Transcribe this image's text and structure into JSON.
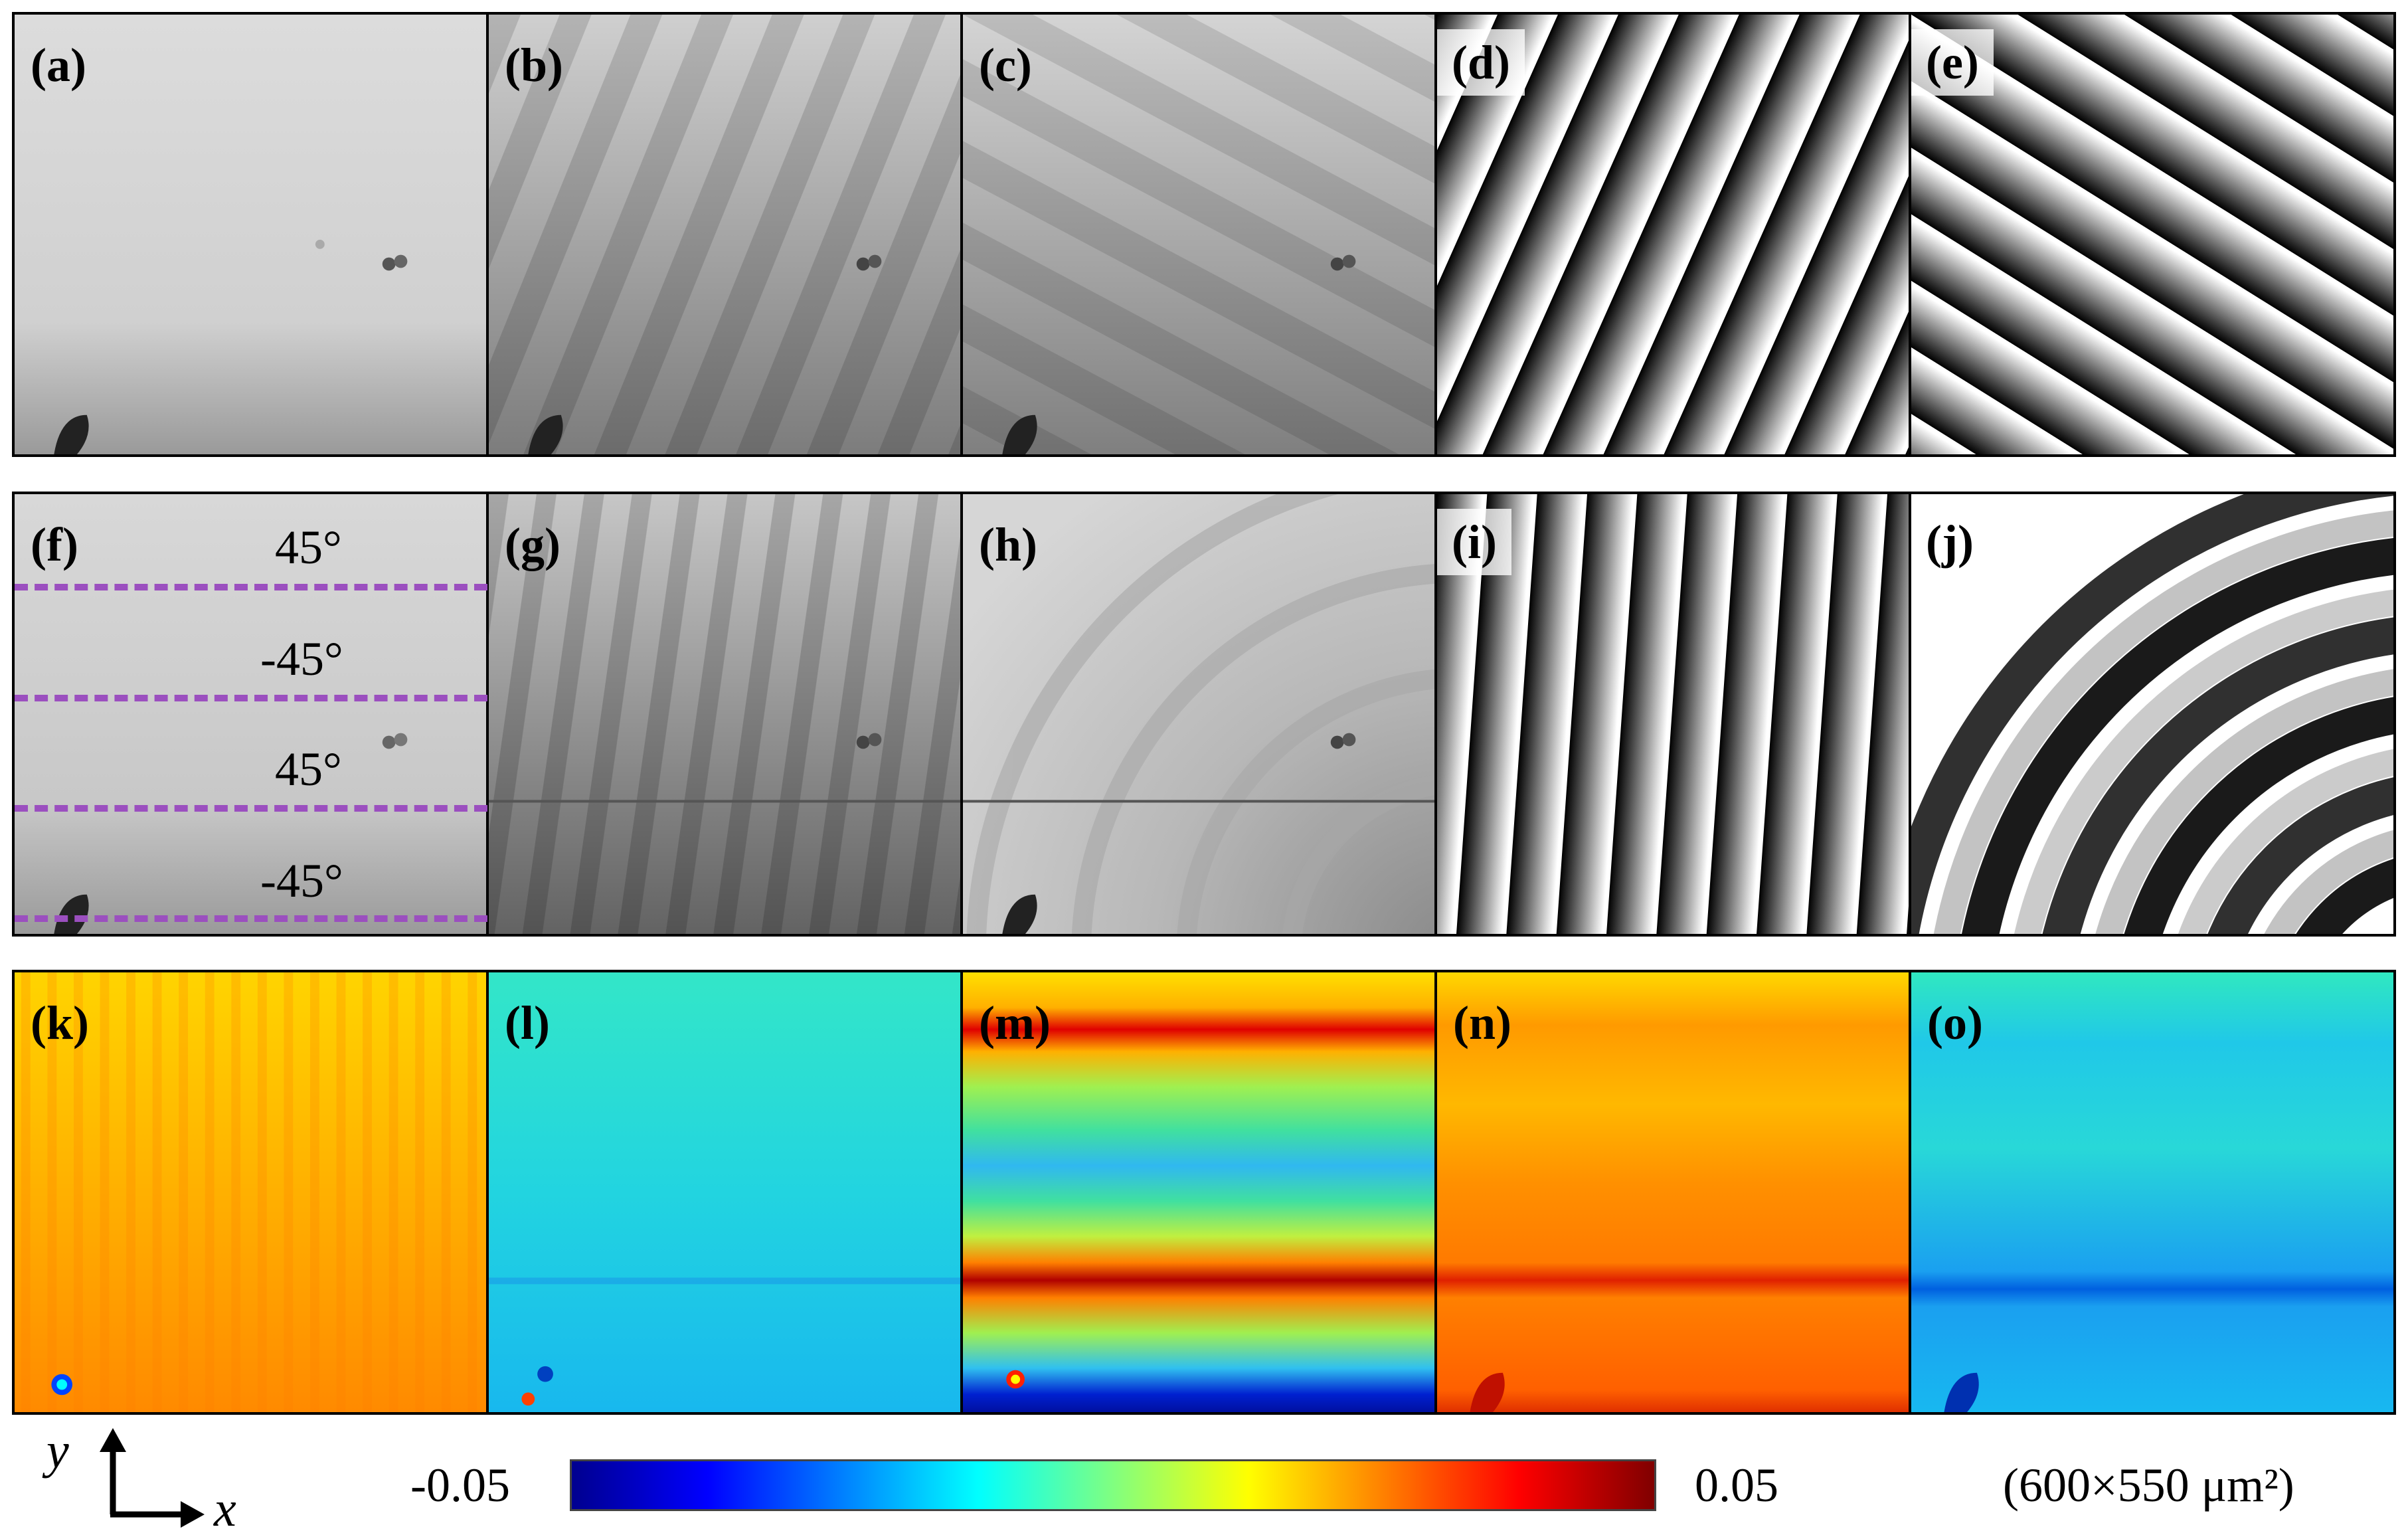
{
  "rows": [
    {
      "panels": [
        {
          "id": "a",
          "label": "(a)",
          "kind": "gray-flat"
        },
        {
          "id": "b",
          "label": "(b)",
          "kind": "gray-fringe-steep"
        },
        {
          "id": "c",
          "label": "(c)",
          "kind": "gray-fringe-shallow"
        },
        {
          "id": "d",
          "label": "(d)",
          "kind": "wrapped-steep"
        },
        {
          "id": "e",
          "label": "(e)",
          "kind": "wrapped-shallow"
        }
      ]
    },
    {
      "panels": [
        {
          "id": "f",
          "label": "(f)",
          "kind": "gray-layered"
        },
        {
          "id": "g",
          "label": "(g)",
          "kind": "gray-fringe-wavy"
        },
        {
          "id": "h",
          "label": "(h)",
          "kind": "gray-fringe-arc"
        },
        {
          "id": "i",
          "label": "(i)",
          "kind": "wrapped-wavy"
        },
        {
          "id": "j",
          "label": "(j)",
          "kind": "wrapped-arc"
        }
      ]
    },
    {
      "panels": [
        {
          "id": "k",
          "label": "(k)",
          "kind": "strain-orange"
        },
        {
          "id": "l",
          "label": "(l)",
          "kind": "strain-cyan"
        },
        {
          "id": "m",
          "label": "(m)",
          "kind": "strain-bands"
        },
        {
          "id": "n",
          "label": "(n)",
          "kind": "strain-orange-bands"
        },
        {
          "id": "o",
          "label": "(o)",
          "kind": "strain-cyan-bands"
        }
      ]
    }
  ],
  "layer_angles": [
    "45°",
    "-45°",
    "45°",
    "-45°"
  ],
  "colorbar": {
    "min_label": "-0.05",
    "max_label": "0.05",
    "colors": [
      "#00008f",
      "#0000ff",
      "#0080ff",
      "#00ffff",
      "#80ff80",
      "#ffff00",
      "#ff8000",
      "#ff0000",
      "#800000"
    ]
  },
  "field_of_view": "(600×550 μm²)",
  "axes": {
    "x_label": "x",
    "y_label": "y"
  }
}
